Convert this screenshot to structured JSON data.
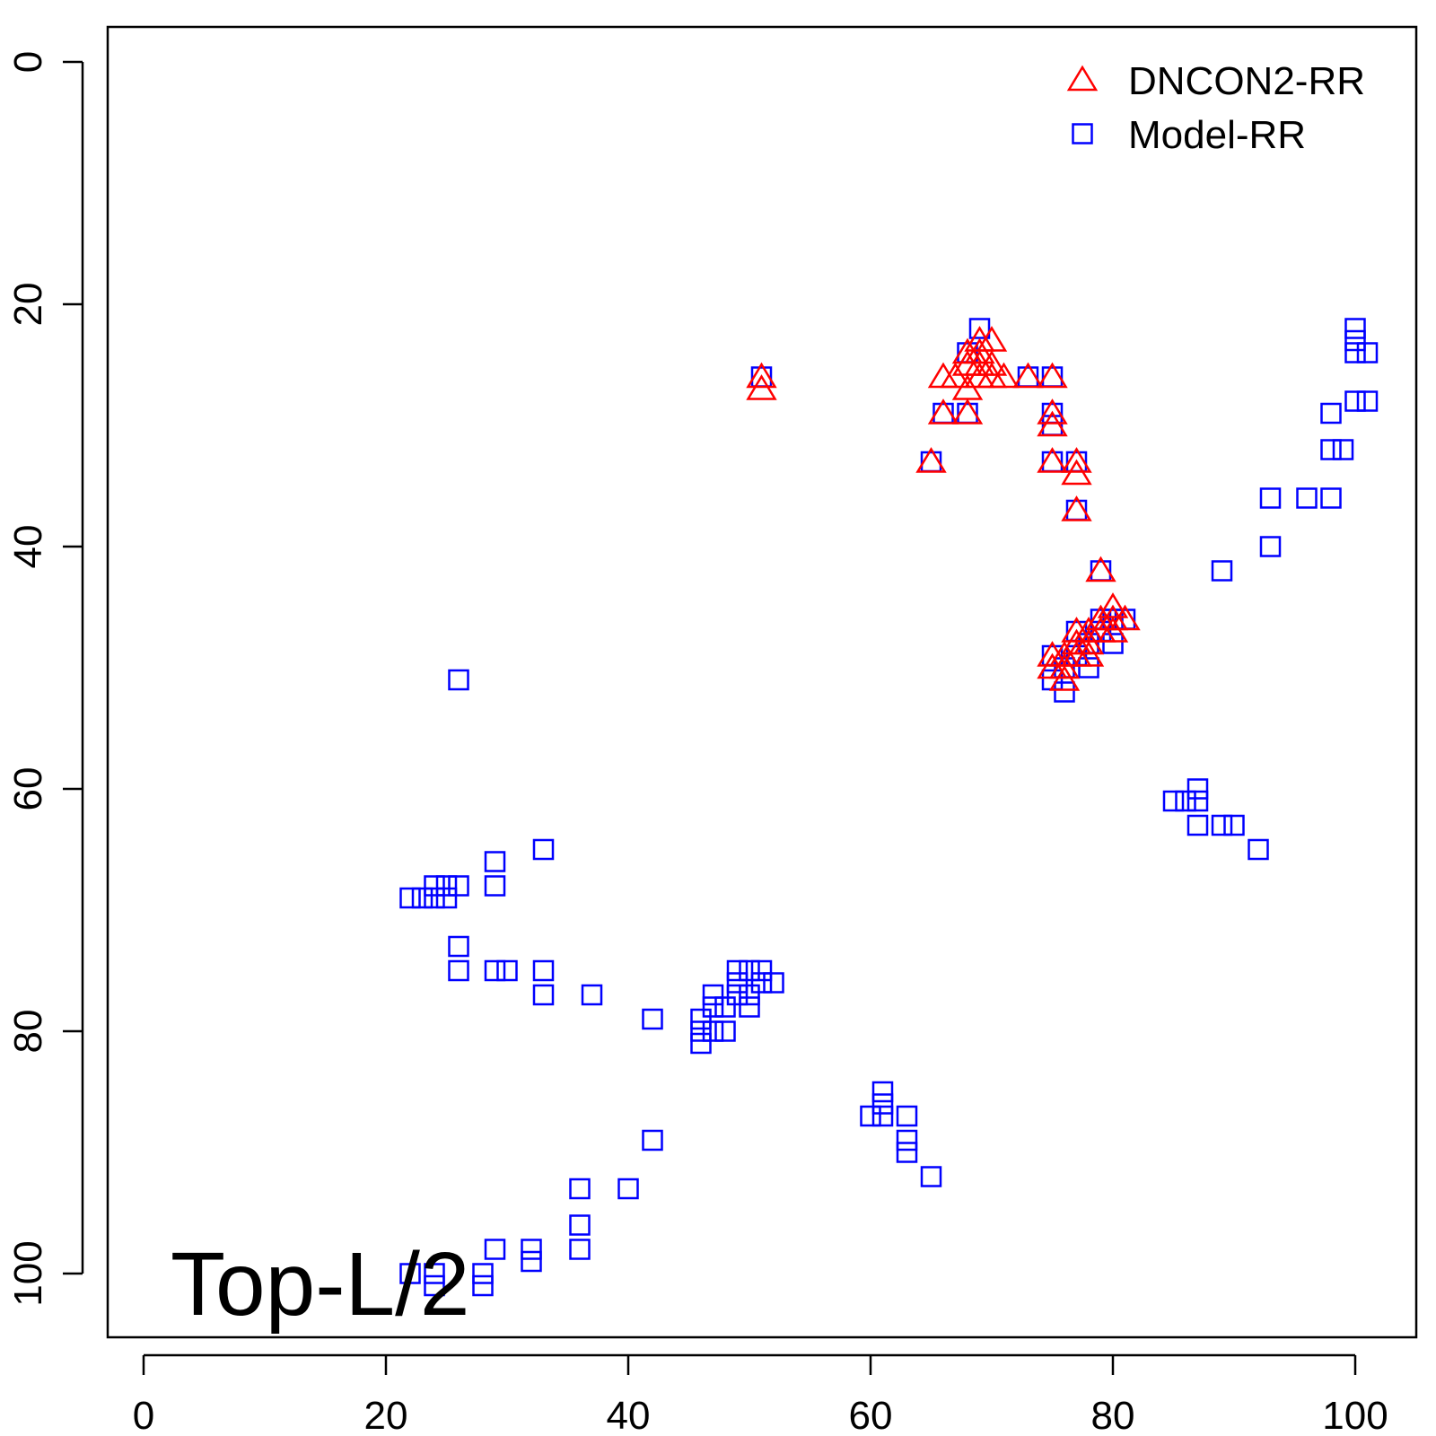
{
  "chart_data": {
    "type": "scatter",
    "annotation": "Top-L/2",
    "xlim": [
      -3,
      104
    ],
    "ylim": [
      -3,
      105
    ],
    "y_reversed": true,
    "x_ticks": [
      "0",
      "20",
      "40",
      "60",
      "80",
      "100"
    ],
    "y_ticks": [
      "0",
      "20",
      "40",
      "60",
      "80",
      "100"
    ],
    "grid": false,
    "legend_position": "top-right",
    "series": [
      {
        "name": "DNCON2-RR",
        "marker": "triangle",
        "color": "#ff0000",
        "points": [
          [
            51,
            26
          ],
          [
            51,
            27
          ],
          [
            65,
            33
          ],
          [
            66,
            26
          ],
          [
            66,
            29
          ],
          [
            67,
            26
          ],
          [
            68,
            24
          ],
          [
            68,
            25
          ],
          [
            68,
            27
          ],
          [
            68,
            29
          ],
          [
            69,
            23
          ],
          [
            69,
            24
          ],
          [
            69,
            25
          ],
          [
            69,
            26
          ],
          [
            70,
            23
          ],
          [
            70,
            25
          ],
          [
            70,
            26
          ],
          [
            71,
            26
          ],
          [
            73,
            26
          ],
          [
            75,
            26
          ],
          [
            75,
            29
          ],
          [
            75,
            30
          ],
          [
            75,
            33
          ],
          [
            77,
            33
          ],
          [
            77,
            34
          ],
          [
            77,
            37
          ],
          [
            79,
            42
          ],
          [
            75,
            49
          ],
          [
            75,
            50
          ],
          [
            76,
            49
          ],
          [
            76,
            50
          ],
          [
            76,
            51
          ],
          [
            77,
            47
          ],
          [
            77,
            48
          ],
          [
            77,
            49
          ],
          [
            78,
            47
          ],
          [
            78,
            48
          ],
          [
            78,
            49
          ],
          [
            79,
            46
          ],
          [
            79,
            47
          ],
          [
            80,
            45
          ],
          [
            80,
            46
          ],
          [
            80,
            47
          ],
          [
            81,
            46
          ]
        ]
      },
      {
        "name": "Model-RR",
        "marker": "square",
        "color": "#0000ff",
        "points": [
          [
            51,
            26
          ],
          [
            65,
            33
          ],
          [
            66,
            29
          ],
          [
            68,
            24
          ],
          [
            68,
            29
          ],
          [
            69,
            22
          ],
          [
            73,
            26
          ],
          [
            75,
            26
          ],
          [
            75,
            29
          ],
          [
            75,
            30
          ],
          [
            75,
            33
          ],
          [
            77,
            33
          ],
          [
            77,
            37
          ],
          [
            79,
            42
          ],
          [
            75,
            49
          ],
          [
            75,
            51
          ],
          [
            76,
            50
          ],
          [
            76,
            52
          ],
          [
            77,
            47
          ],
          [
            77,
            49
          ],
          [
            78,
            48
          ],
          [
            78,
            50
          ],
          [
            79,
            46
          ],
          [
            79,
            47
          ],
          [
            80,
            46
          ],
          [
            80,
            48
          ],
          [
            81,
            46
          ],
          [
            100,
            22
          ],
          [
            100,
            23
          ],
          [
            100,
            24
          ],
          [
            101,
            24
          ],
          [
            100,
            28
          ],
          [
            101,
            28
          ],
          [
            98,
            29
          ],
          [
            98,
            32
          ],
          [
            99,
            32
          ],
          [
            93,
            36
          ],
          [
            96,
            36
          ],
          [
            98,
            36
          ],
          [
            93,
            40
          ],
          [
            89,
            42
          ],
          [
            26,
            51
          ],
          [
            87,
            60
          ],
          [
            85,
            61
          ],
          [
            86,
            61
          ],
          [
            87,
            61
          ],
          [
            87,
            63
          ],
          [
            89,
            63
          ],
          [
            90,
            63
          ],
          [
            92,
            65
          ],
          [
            33,
            65
          ],
          [
            29,
            66
          ],
          [
            29,
            68
          ],
          [
            22,
            69
          ],
          [
            23,
            69
          ],
          [
            24,
            68
          ],
          [
            24,
            69
          ],
          [
            25,
            68
          ],
          [
            25,
            69
          ],
          [
            26,
            68
          ],
          [
            26,
            73
          ],
          [
            26,
            75
          ],
          [
            29,
            75
          ],
          [
            30,
            75
          ],
          [
            33,
            75
          ],
          [
            33,
            77
          ],
          [
            37,
            77
          ],
          [
            42,
            79
          ],
          [
            46,
            79
          ],
          [
            46,
            80
          ],
          [
            46,
            81
          ],
          [
            47,
            77
          ],
          [
            47,
            78
          ],
          [
            47,
            80
          ],
          [
            48,
            78
          ],
          [
            48,
            80
          ],
          [
            49,
            75
          ],
          [
            49,
            76
          ],
          [
            49,
            77
          ],
          [
            50,
            75
          ],
          [
            50,
            77
          ],
          [
            50,
            78
          ],
          [
            51,
            75
          ],
          [
            51,
            76
          ],
          [
            52,
            76
          ],
          [
            61,
            85
          ],
          [
            61,
            86
          ],
          [
            60,
            87
          ],
          [
            61,
            87
          ],
          [
            63,
            87
          ],
          [
            63,
            89
          ],
          [
            63,
            90
          ],
          [
            65,
            92
          ],
          [
            42,
            89
          ],
          [
            36,
            93
          ],
          [
            40,
            93
          ],
          [
            36,
            96
          ],
          [
            36,
            98
          ],
          [
            29,
            98
          ],
          [
            32,
            98
          ],
          [
            32,
            99
          ],
          [
            22,
            100
          ],
          [
            24,
            100
          ],
          [
            24,
            101
          ],
          [
            28,
            100
          ],
          [
            28,
            101
          ]
        ]
      }
    ]
  }
}
